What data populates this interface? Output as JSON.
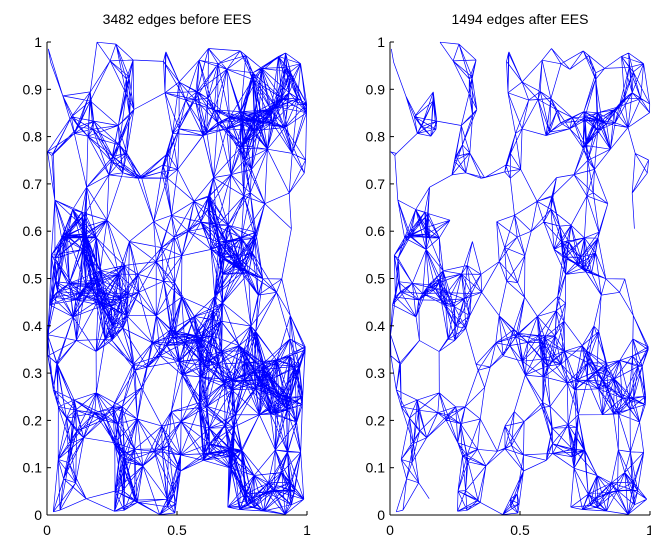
{
  "chart_data": [
    {
      "type": "network-graph",
      "title": "3482 edges before EES",
      "edge_count": 3482,
      "xlim": [
        0,
        1
      ],
      "ylim": [
        0,
        1
      ],
      "xticks": [
        0,
        0.5,
        1
      ],
      "xtick_labels": [
        "0",
        "0.5",
        "1"
      ],
      "yticks": [
        0,
        0.1,
        0.2,
        0.3,
        0.4,
        0.5,
        0.6,
        0.7,
        0.8,
        0.9,
        1
      ],
      "ytick_labels": [
        "0",
        "0.1",
        "0.2",
        "0.3",
        "0.4",
        "0.5",
        "0.6",
        "0.7",
        "0.8",
        "0.9",
        "1"
      ],
      "grid": false,
      "edge_color": "#0000ff"
    },
    {
      "type": "network-graph",
      "title": "1494 edges after EES",
      "edge_count": 1494,
      "xlim": [
        0,
        1
      ],
      "ylim": [
        0,
        1
      ],
      "xticks": [
        0,
        0.5,
        1
      ],
      "xtick_labels": [
        "0",
        "0.5",
        "1"
      ],
      "yticks": [
        0,
        0.1,
        0.2,
        0.3,
        0.4,
        0.5,
        0.6,
        0.7,
        0.8,
        0.9,
        1
      ],
      "ytick_labels": [
        "0",
        "0.1",
        "0.2",
        "0.3",
        "0.4",
        "0.5",
        "0.6",
        "0.7",
        "0.8",
        "0.9",
        "1"
      ],
      "grid": false,
      "edge_color": "#0000ff"
    }
  ]
}
